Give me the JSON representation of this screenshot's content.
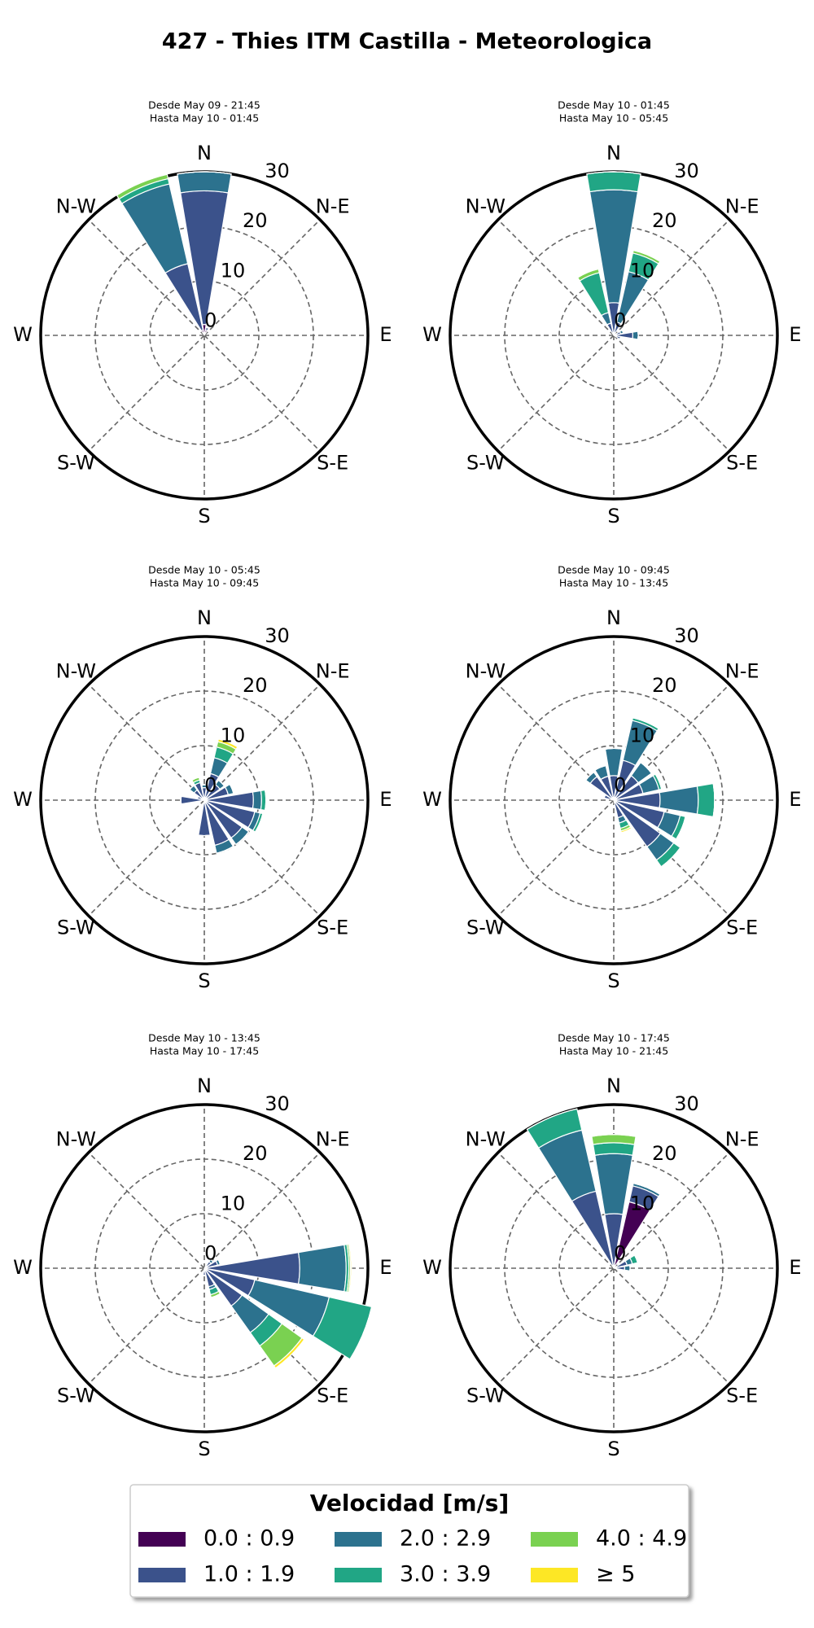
{
  "title": "427 - Thies ITM Castilla - Meteorologica",
  "legend": {
    "title": "Velocidad [m/s]",
    "entries": [
      {
        "name": "0.0 : 0.9",
        "color": "#440154"
      },
      {
        "name": "1.0 : 1.9",
        "color": "#3b528b"
      },
      {
        "name": "2.0 : 2.9",
        "color": "#2c728e"
      },
      {
        "name": "3.0 : 3.9",
        "color": "#21a685"
      },
      {
        "name": "4.0 : 4.9",
        "color": "#7ad151"
      },
      {
        "name": "≥  5",
        "color": "#fde725"
      }
    ]
  },
  "chart_data": [
    {
      "type": "windrose",
      "subtitle": [
        "Desde May 09 - 21:45",
        "Hasta May 10 - 01:45"
      ],
      "directions": [
        "N",
        "N-E",
        "E",
        "S-E",
        "S",
        "S-W",
        "W",
        "N-W"
      ],
      "rlim": [
        0,
        30
      ],
      "rticks": [
        0,
        10,
        20,
        30
      ],
      "series": [
        {
          "values": [
            2,
            1,
            0,
            0,
            0,
            0,
            0,
            0,
            0,
            0,
            0,
            0,
            0,
            0,
            0,
            1
          ]
        },
        {
          "values": [
            24.5,
            0.5,
            0,
            0,
            0,
            0,
            0,
            0,
            0,
            0,
            0,
            0,
            0,
            0,
            0,
            12.5
          ]
        },
        {
          "values": [
            3.5,
            0,
            0,
            0,
            0,
            0,
            0,
            0,
            0,
            0,
            0,
            0,
            0,
            0,
            0,
            15
          ]
        },
        {
          "values": [
            0,
            0,
            0,
            0,
            0,
            0,
            0,
            0,
            0,
            0,
            0,
            0,
            0,
            0,
            0,
            1
          ]
        },
        {
          "values": [
            0,
            0,
            0,
            0,
            0,
            0,
            0,
            0,
            0,
            0,
            0,
            0,
            0,
            0,
            0,
            0.8
          ]
        },
        {
          "values": [
            0,
            0,
            0,
            0,
            0,
            0,
            0,
            0,
            0,
            0,
            0,
            0,
            0,
            0,
            0,
            0
          ]
        }
      ]
    },
    {
      "type": "windrose",
      "subtitle": [
        "Desde May 10 - 01:45",
        "Hasta May 10 - 05:45"
      ],
      "directions": [
        "N",
        "N-E",
        "E",
        "S-E",
        "S",
        "S-W",
        "W",
        "N-W"
      ],
      "rlim": [
        0,
        30
      ],
      "rticks": [
        0,
        10,
        20,
        30
      ],
      "series": [
        {
          "values": [
            0.5,
            0.5,
            0,
            0.3,
            0.5,
            0.3,
            0,
            0,
            0,
            0,
            0,
            0,
            0,
            0,
            0,
            0.3
          ]
        },
        {
          "values": [
            5.5,
            2,
            0,
            1,
            3,
            1,
            0,
            0,
            0,
            0,
            0,
            0,
            0,
            0,
            0,
            2
          ]
        },
        {
          "values": [
            20.7,
            9.5,
            0,
            0.5,
            1,
            0,
            0,
            0,
            0,
            0,
            0,
            0,
            0,
            0,
            0,
            2
          ]
        },
        {
          "values": [
            3.3,
            3.5,
            0,
            0,
            0,
            0,
            0,
            0,
            0,
            0,
            0,
            0,
            0,
            0,
            0,
            7.5
          ]
        },
        {
          "values": [
            0,
            0.5,
            0,
            0,
            0,
            0,
            0,
            0,
            0,
            0,
            0,
            0,
            0,
            0,
            0,
            0.7
          ]
        },
        {
          "values": [
            0,
            0,
            0,
            0,
            0,
            0,
            0,
            0,
            0,
            0,
            0,
            0,
            0,
            0,
            0,
            0
          ]
        }
      ]
    },
    {
      "type": "windrose",
      "subtitle": [
        "Desde May 10 - 05:45",
        "Hasta May 10 - 09:45"
      ],
      "directions": [
        "N",
        "N-E",
        "E",
        "S-E",
        "S",
        "S-W",
        "W",
        "N-W"
      ],
      "rlim": [
        0,
        30
      ],
      "rticks": [
        0,
        10,
        20,
        30
      ],
      "series": [
        {
          "values": [
            0.3,
            0.5,
            0.5,
            0.5,
            0.5,
            0.5,
            0.5,
            0.5,
            0.5,
            0,
            0,
            0,
            0.3,
            0.3,
            0.3,
            0.3
          ]
        },
        {
          "values": [
            2,
            4.5,
            3,
            4,
            8.5,
            9,
            8,
            8,
            6,
            0,
            0,
            0,
            4,
            1,
            2,
            3
          ]
        },
        {
          "values": [
            0.5,
            3,
            1,
            1,
            1.5,
            1,
            1.5,
            1.5,
            0,
            0,
            0,
            0,
            0,
            0,
            1,
            0
          ]
        },
        {
          "values": [
            0,
            2,
            0,
            0,
            0.8,
            0.5,
            0,
            0,
            0,
            0,
            0,
            0,
            0,
            0,
            0,
            0.5
          ]
        },
        {
          "values": [
            0,
            1,
            0,
            0,
            0,
            0,
            0,
            0,
            0,
            0,
            0,
            0,
            0,
            0,
            0,
            0.5
          ]
        },
        {
          "values": [
            0,
            0.5,
            0,
            0,
            0,
            0,
            0,
            0,
            0,
            0,
            0,
            0,
            0,
            0,
            0,
            0
          ]
        }
      ]
    },
    {
      "type": "windrose",
      "subtitle": [
        "Desde May 10 - 09:45",
        "Hasta May 10 - 13:45"
      ],
      "directions": [
        "N",
        "N-E",
        "E",
        "S-E",
        "S",
        "S-W",
        "W",
        "N-W"
      ],
      "rlim": [
        0,
        30
      ],
      "rticks": [
        0,
        10,
        20,
        30
      ],
      "series": [
        {
          "values": [
            0.5,
            0.5,
            0.5,
            0.5,
            0.5,
            0.5,
            0.5,
            0.3,
            0,
            0,
            0,
            0,
            0,
            0.3,
            0.3,
            0.5
          ]
        },
        {
          "values": [
            4,
            7,
            5,
            5,
            8,
            9,
            10,
            3,
            0,
            0,
            0,
            0,
            0,
            1.5,
            5,
            4
          ]
        },
        {
          "values": [
            5,
            7.5,
            3,
            3,
            7,
            3,
            3,
            1,
            0,
            0,
            0,
            0,
            0,
            0,
            1,
            2
          ]
        },
        {
          "values": [
            0,
            0.5,
            0,
            0.5,
            3,
            1,
            1.5,
            1,
            0,
            0,
            0,
            0,
            0,
            0,
            0,
            0
          ]
        },
        {
          "values": [
            0,
            0,
            0,
            0,
            0,
            0,
            0,
            0.5,
            0,
            0,
            0,
            0,
            0,
            0,
            0,
            0
          ]
        },
        {
          "values": [
            0,
            0,
            0,
            0,
            0,
            0,
            0,
            0.3,
            0,
            0,
            0,
            0,
            0,
            0,
            0,
            0
          ]
        }
      ]
    },
    {
      "type": "windrose",
      "subtitle": [
        "Desde May 10 - 13:45",
        "Hasta May 10 - 17:45"
      ],
      "directions": [
        "N",
        "N-E",
        "E",
        "S-E",
        "S",
        "S-W",
        "W",
        "N-W"
      ],
      "rlim": [
        0,
        30
      ],
      "rticks": [
        0,
        10,
        20,
        30
      ],
      "series": [
        {
          "values": [
            0,
            0,
            0.5,
            0.5,
            0.5,
            0.5,
            0.5,
            0.5,
            0.3,
            0,
            0,
            0,
            0,
            0,
            0,
            0
          ]
        },
        {
          "values": [
            0,
            0,
            1,
            2,
            17,
            9,
            8,
            3,
            1,
            0,
            0,
            0,
            0,
            0,
            0,
            0
          ]
        },
        {
          "values": [
            0,
            0,
            0.5,
            0.5,
            8.5,
            14,
            6,
            0.5,
            0,
            0,
            0,
            0,
            0,
            0,
            0,
            0
          ]
        },
        {
          "values": [
            0,
            0,
            0,
            0,
            0.5,
            8,
            3,
            1,
            0,
            0,
            0,
            0,
            0,
            0,
            0,
            0
          ]
        },
        {
          "values": [
            0,
            0,
            0,
            0,
            0.3,
            0,
            4.5,
            0.5,
            0,
            0,
            0,
            0,
            0,
            0,
            0,
            0
          ]
        },
        {
          "values": [
            0,
            0,
            0,
            0,
            0.2,
            0,
            0.5,
            0,
            0,
            0,
            0,
            0,
            0,
            0,
            0,
            0
          ]
        }
      ]
    },
    {
      "type": "windrose",
      "subtitle": [
        "Desde May 10 - 17:45",
        "Hasta May 10 - 21:45"
      ],
      "directions": [
        "N",
        "N-E",
        "E",
        "S-E",
        "S",
        "S-W",
        "W",
        "N-W"
      ],
      "rlim": [
        0,
        30
      ],
      "rticks": [
        0,
        10,
        20,
        30
      ],
      "series": [
        {
          "values": [
            0.5,
            12.5,
            0,
            0.5,
            0.5,
            0,
            0,
            0,
            0,
            0,
            0,
            0,
            0,
            0,
            0,
            0.5
          ]
        },
        {
          "values": [
            9.5,
            3,
            0,
            2,
            1.5,
            0,
            0,
            0,
            0,
            0,
            0,
            0,
            0,
            0,
            0,
            14
          ]
        },
        {
          "values": [
            11,
            0.5,
            0,
            1,
            1,
            0,
            0,
            0,
            0,
            0,
            0,
            0,
            0,
            0,
            0,
            11.5
          ]
        },
        {
          "values": [
            2,
            0,
            0,
            1,
            0,
            0,
            0,
            0,
            0,
            0,
            0,
            0,
            0,
            0,
            0,
            4
          ]
        },
        {
          "values": [
            1.5,
            0,
            0,
            0,
            0,
            0,
            0,
            0,
            0,
            0,
            0,
            0,
            0,
            0,
            0,
            0
          ]
        },
        {
          "values": [
            0,
            0,
            0,
            0,
            0,
            0,
            0,
            0,
            0,
            0,
            0,
            0,
            0,
            0,
            0,
            0
          ]
        }
      ]
    }
  ]
}
